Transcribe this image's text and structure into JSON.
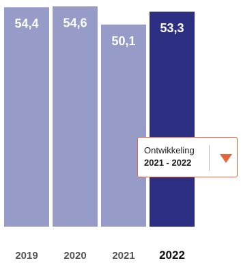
{
  "chart_data": {
    "type": "bar",
    "categories": [
      "2019",
      "2020",
      "2021",
      "2022"
    ],
    "values": [
      54.4,
      54.6,
      50.1,
      53.3
    ],
    "value_labels": [
      "54,4",
      "54,6",
      "50,1",
      "53,3"
    ],
    "highlight_category": "2022",
    "title": "",
    "xlabel": "",
    "ylabel": "",
    "ylim": [
      0,
      55.5
    ],
    "grid": false,
    "colors": {
      "bar": "#969cc7",
      "highlight": "#2d3082",
      "label": "#ffffff",
      "axis_text": "#555555",
      "axis_text_highlight": "#111111"
    }
  },
  "callout": {
    "label": "Ontwikkeling",
    "range": "2021 - 2022",
    "icon": "arrow-down-icon",
    "color": "#e8643c"
  }
}
